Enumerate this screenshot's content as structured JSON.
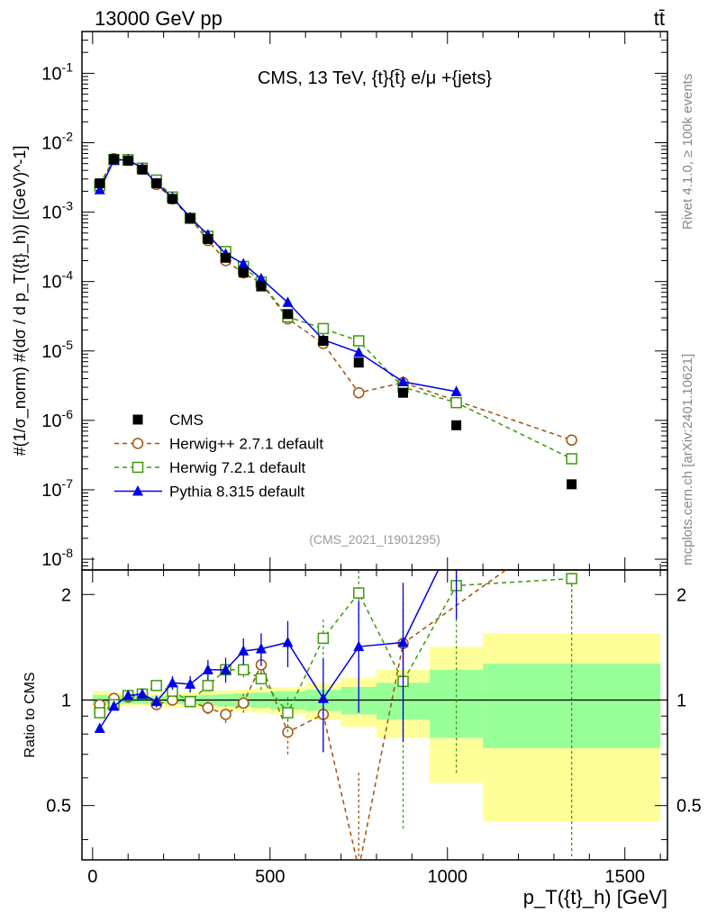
{
  "header": {
    "left": "13000 GeV pp",
    "right": "tt̄"
  },
  "side_labels": {
    "rivet": "Rivet 4.1.0, ≥ 100k events",
    "mcplots": "mcplots.cern.ch [arXiv:2401.10621]"
  },
  "colors": {
    "cms": "#000000",
    "herwigpp": "#a0520f",
    "herwig7": "#3c9a0a",
    "pythia": "#0000e6",
    "band_outer": "#ffff99",
    "band_inner": "#99ff99"
  },
  "chart_data": {
    "type": "line",
    "title": "CMS, 13 TeV, {t}{t̄} e/μ +{jets}",
    "watermark": "(CMS_2021_I1901295)",
    "xlabel": "p_T({t}_h) [GeV]",
    "xlim": [
      -30,
      1620
    ],
    "xticks": [
      0,
      500,
      1000,
      1500
    ],
    "xtick_labels": [
      "0",
      "500",
      "1000",
      "1500"
    ],
    "main": {
      "ylabel": "#(1/σ_norm) #(dσ / d p_T({t}_h)) [(GeV)^-1]",
      "yscale": "log",
      "ylim": [
        7e-09,
        0.4
      ],
      "yticks": [
        1e-08,
        1e-07,
        1e-06,
        1e-05,
        0.0001,
        0.001,
        0.01,
        0.1
      ],
      "ytick_labels": [
        "10^-8",
        "10^-7",
        "10^-6",
        "10^-5",
        "10^-4",
        "10^-3",
        "10^-2",
        "10^-1"
      ]
    },
    "ratio": {
      "ylabel": "Ratio to CMS",
      "ylim": [
        0.35,
        2.35
      ],
      "yticks": [
        0.5,
        1,
        2
      ],
      "ytick_labels": [
        "0.5",
        "1",
        "2"
      ],
      "bins": [
        {
          "lo": 0,
          "hi": 40,
          "inner": 0.035,
          "outer": 0.06
        },
        {
          "lo": 40,
          "hi": 80,
          "inner": 0.03,
          "outer": 0.05
        },
        {
          "lo": 80,
          "hi": 120,
          "inner": 0.025,
          "outer": 0.04
        },
        {
          "lo": 120,
          "hi": 160,
          "inner": 0.025,
          "outer": 0.04
        },
        {
          "lo": 160,
          "hi": 200,
          "inner": 0.025,
          "outer": 0.04
        },
        {
          "lo": 200,
          "hi": 250,
          "inner": 0.025,
          "outer": 0.045
        },
        {
          "lo": 250,
          "hi": 300,
          "inner": 0.03,
          "outer": 0.05
        },
        {
          "lo": 300,
          "hi": 350,
          "inner": 0.035,
          "outer": 0.06
        },
        {
          "lo": 350,
          "hi": 400,
          "inner": 0.04,
          "outer": 0.065
        },
        {
          "lo": 400,
          "hi": 450,
          "inner": 0.045,
          "outer": 0.07
        },
        {
          "lo": 450,
          "hi": 500,
          "inner": 0.05,
          "outer": 0.08
        },
        {
          "lo": 500,
          "hi": 600,
          "inner": 0.06,
          "outer": 0.09
        },
        {
          "lo": 600,
          "hi": 700,
          "inner": 0.07,
          "outer": 0.12
        },
        {
          "lo": 700,
          "hi": 800,
          "inner": 0.09,
          "outer": 0.16
        },
        {
          "lo": 800,
          "hi": 950,
          "inner": 0.12,
          "outer": 0.22
        },
        {
          "lo": 950,
          "hi": 1100,
          "inner": 0.22,
          "outer": 0.42
        },
        {
          "lo": 1100,
          "hi": 1600,
          "inner": 0.27,
          "outer": 0.55
        }
      ]
    },
    "series": [
      {
        "key": "cms",
        "name": "CMS",
        "marker": "filled-square",
        "x": [
          20,
          60,
          100,
          140,
          180,
          225,
          275,
          325,
          375,
          425,
          475,
          550,
          650,
          750,
          875,
          1025,
          1350
        ],
        "y": [
          0.0026,
          0.0058,
          0.0055,
          0.0041,
          0.0026,
          0.00155,
          0.00082,
          0.00041,
          0.00022,
          0.000135,
          8.5e-05,
          3.4e-05,
          1.4e-05,
          6.8e-06,
          2.5e-06,
          8.5e-07,
          1.2e-07
        ],
        "ratio": [
          1,
          1,
          1,
          1,
          1,
          1,
          1,
          1,
          1,
          1,
          1,
          1,
          1,
          1,
          1,
          1,
          1
        ],
        "ratio_err": [
          0,
          0,
          0,
          0,
          0,
          0,
          0,
          0,
          0,
          0,
          0,
          0,
          0,
          0,
          0,
          0,
          0
        ]
      },
      {
        "key": "herwigpp",
        "name": "Herwig++ 2.7.1 default",
        "marker": "open-circle",
        "dashed": true,
        "x": [
          20,
          60,
          100,
          140,
          180,
          225,
          275,
          325,
          375,
          425,
          475,
          550,
          650,
          750,
          875,
          1350
        ],
        "y": [
          0.0025,
          0.0059,
          0.0056,
          0.0043,
          0.0025,
          0.00155,
          0.00081,
          0.00039,
          0.0002,
          0.000133,
          9.5e-05,
          2.9e-05,
          1.28e-05,
          2.5e-06,
          3.5e-06,
          5.2e-07
        ],
        "ratio": [
          0.97,
          1.01,
          1.02,
          1.04,
          0.97,
          1.0,
          0.99,
          0.95,
          0.91,
          0.98,
          1.26,
          0.81,
          0.91,
          0.33,
          1.45,
          3.2
        ],
        "ratio_err": [
          0.02,
          0.02,
          0.02,
          0.02,
          0.03,
          0.03,
          0.03,
          0.04,
          0.05,
          0.06,
          0.08,
          0.11,
          0.2,
          0.3,
          0.5,
          1.5
        ]
      },
      {
        "key": "herwig7",
        "name": "Herwig 7.2.1 default",
        "marker": "open-square",
        "dashed": true,
        "x": [
          20,
          60,
          100,
          140,
          180,
          225,
          275,
          325,
          375,
          425,
          475,
          550,
          650,
          750,
          875,
          1025,
          1350
        ],
        "y": [
          0.0024,
          0.0057,
          0.0057,
          0.0043,
          0.0029,
          0.00165,
          0.00081,
          0.00045,
          0.00027,
          0.000165,
          9.8e-05,
          3.1e-05,
          2.1e-05,
          1.4e-05,
          3e-06,
          1.8e-06,
          2.8e-07
        ],
        "ratio": [
          0.92,
          0.97,
          1.03,
          1.04,
          1.1,
          1.06,
          0.99,
          1.1,
          1.22,
          1.22,
          1.15,
          0.92,
          1.5,
          2.02,
          1.13,
          2.12,
          2.22
        ],
        "ratio_err": [
          0.02,
          0.02,
          0.02,
          0.02,
          0.03,
          0.03,
          0.03,
          0.04,
          0.05,
          0.06,
          0.08,
          0.11,
          0.2,
          0.35,
          0.7,
          1.5,
          2.0
        ]
      },
      {
        "key": "pythia",
        "name": "Pythia 8.315 default",
        "marker": "filled-triangle",
        "dashed": false,
        "x": [
          20,
          60,
          100,
          140,
          180,
          225,
          275,
          325,
          375,
          425,
          475,
          550,
          650,
          750,
          875,
          1025
        ],
        "y": [
          0.0021,
          0.0056,
          0.0057,
          0.0043,
          0.0026,
          0.00162,
          0.00084,
          0.00047,
          0.00025,
          0.00018,
          0.00011,
          5e-05,
          1.45e-05,
          9.5e-06,
          3.6e-06,
          2.6e-06
        ],
        "ratio": [
          0.83,
          0.96,
          1.03,
          1.04,
          0.99,
          1.12,
          1.11,
          1.22,
          1.22,
          1.38,
          1.4,
          1.46,
          1.01,
          1.42,
          1.46,
          3.0
        ],
        "ratio_err": [
          0.02,
          0.02,
          0.03,
          0.03,
          0.04,
          0.05,
          0.06,
          0.08,
          0.1,
          0.12,
          0.15,
          0.22,
          0.3,
          0.5,
          0.7,
          1.3
        ]
      }
    ]
  }
}
